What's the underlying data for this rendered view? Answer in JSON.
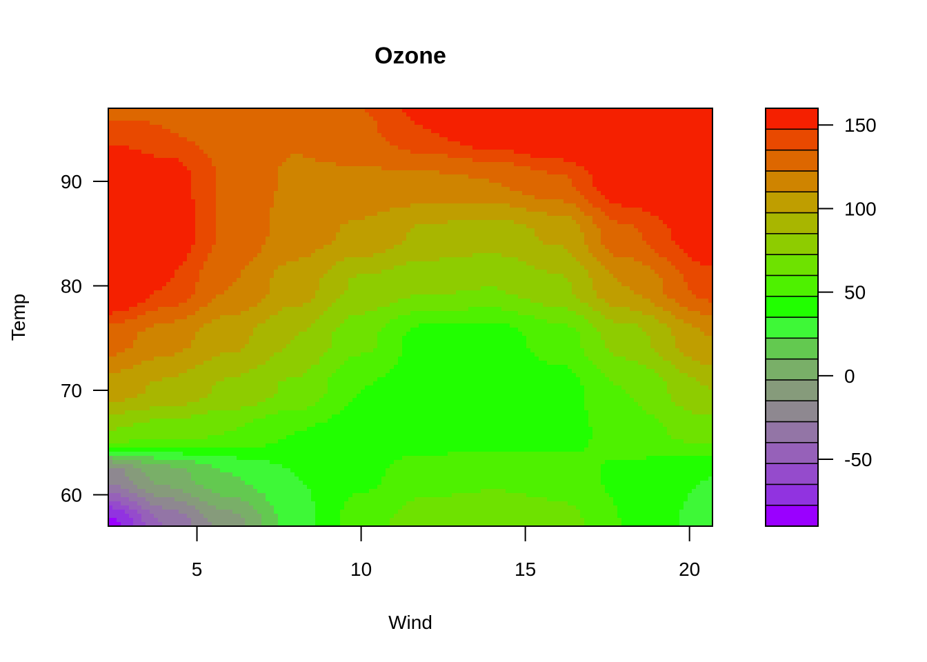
{
  "chart_data": {
    "type": "heatmap",
    "subtype": "filled-contour",
    "title": "Ozone",
    "xlabel": "Wind",
    "ylabel": "Temp",
    "xlim": [
      2.3,
      20.7
    ],
    "ylim": [
      57,
      97
    ],
    "x_ticks": [
      5,
      10,
      15,
      20
    ],
    "y_ticks": [
      60,
      70,
      80,
      90
    ],
    "colorbar": {
      "range": [
        -90,
        160
      ],
      "step": 10,
      "ticks": [
        -50,
        0,
        50,
        100,
        150
      ],
      "colors_low_to_high": [
        "#9a00ff",
        "#9133e0",
        "#954bcc",
        "#9661b9",
        "#9375a6",
        "#8e8890",
        "#869b7b",
        "#79af68",
        "#63c950",
        "#3ef837",
        "#21ff00",
        "#4ef100",
        "#6ee200",
        "#8ecc00",
        "#a8b600",
        "#bf9e00",
        "#cf8400",
        "#dd6700",
        "#e84900",
        "#f52000"
      ]
    },
    "z_values_grid": {
      "x": [
        2.3,
        4,
        6,
        8,
        10,
        12,
        14,
        16,
        18,
        20.7
      ],
      "y": [
        57,
        62,
        66,
        70,
        75,
        80,
        85,
        90,
        95,
        97
      ],
      "z": [
        [
          -85,
          -50,
          -25,
          5,
          25,
          37,
          40,
          35,
          20,
          5
        ],
        [
          -35,
          -15,
          0,
          10,
          18,
          25,
          27,
          25,
          18,
          10
        ],
        [
          40,
          35,
          30,
          20,
          15,
          14,
          14,
          15,
          25,
          35
        ],
        [
          65,
          58,
          48,
          38,
          20,
          13,
          13,
          15,
          30,
          50
        ],
        [
          85,
          75,
          63,
          50,
          33,
          15,
          15,
          25,
          45,
          70
        ],
        [
          118,
          100,
          80,
          65,
          48,
          42,
          40,
          48,
          70,
          95
        ],
        [
          128,
          110,
          88,
          75,
          68,
          58,
          55,
          62,
          88,
          110
        ],
        [
          122,
          108,
          88,
          78,
          78,
          78,
          80,
          88,
          110,
          130
        ],
        [
          95,
          90,
          85,
          82,
          88,
          100,
          110,
          120,
          140,
          155
        ],
        [
          85,
          88,
          88,
          85,
          90,
          105,
          118,
          130,
          150,
          160
        ]
      ]
    }
  }
}
